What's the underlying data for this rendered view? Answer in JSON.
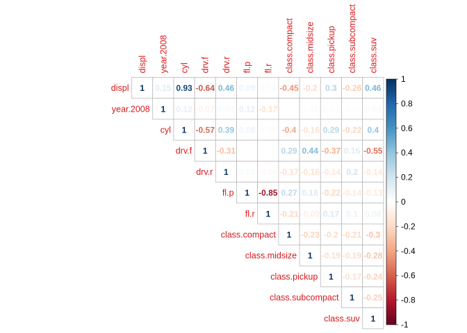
{
  "chart_data": {
    "type": "heatmap",
    "variables": [
      "displ",
      "year.2008",
      "cyl",
      "drv.f",
      "drv.r",
      "fl.p",
      "fl.r",
      "class.compact",
      "class.midsize",
      "class.pickup",
      "class.subcompact",
      "class.suv"
    ],
    "triangle": "upper",
    "values": [
      [
        1,
        0.15,
        0.93,
        -0.64,
        0.46,
        0.09,
        0.04,
        -0.45,
        -0.2,
        0.3,
        -0.26,
        0.46
      ],
      [
        null,
        1,
        0.12,
        -0.07,
        0.04,
        0.12,
        -0.17,
        0.01,
        0.03,
        0.03,
        -0.03,
        0.04
      ],
      [
        null,
        null,
        1,
        -0.57,
        0.39,
        0.08,
        0.03,
        -0.4,
        -0.16,
        0.29,
        -0.22,
        0.4
      ],
      [
        null,
        null,
        null,
        1,
        -0.31,
        0.01,
        0.01,
        0.29,
        0.44,
        -0.37,
        0.15,
        -0.55
      ],
      [
        null,
        null,
        null,
        null,
        1,
        0.05,
        -0.04,
        -0.17,
        -0.16,
        -0.14,
        0.2,
        -0.14
      ],
      [
        null,
        null,
        null,
        null,
        null,
        1,
        -0.85,
        0.27,
        0.16,
        -0.22,
        -0.14,
        -0.13
      ],
      [
        null,
        null,
        null,
        null,
        null,
        null,
        1,
        -0.21,
        -0.09,
        0.17,
        0.1,
        0.08
      ],
      [
        null,
        null,
        null,
        null,
        null,
        null,
        null,
        1,
        -0.23,
        -0.2,
        -0.21,
        -0.3
      ],
      [
        null,
        null,
        null,
        null,
        null,
        null,
        null,
        null,
        1,
        -0.19,
        -0.19,
        -0.28
      ],
      [
        null,
        null,
        null,
        null,
        null,
        null,
        null,
        null,
        null,
        1,
        -0.17,
        -0.24
      ],
      [
        null,
        null,
        null,
        null,
        null,
        null,
        null,
        null,
        null,
        null,
        1,
        -0.25
      ],
      [
        null,
        null,
        null,
        null,
        null,
        null,
        null,
        null,
        null,
        null,
        null,
        1
      ]
    ],
    "colorbar": {
      "ticks": [
        1,
        0.8,
        0.6,
        0.4,
        0.2,
        0,
        -0.2,
        -0.4,
        -0.6,
        -0.8,
        -1
      ],
      "range": [
        -1,
        1
      ]
    },
    "colors": {
      "negative": "#67001f",
      "neutral": "#ffffff",
      "positive": "#053061",
      "label": "#d7191c"
    }
  }
}
